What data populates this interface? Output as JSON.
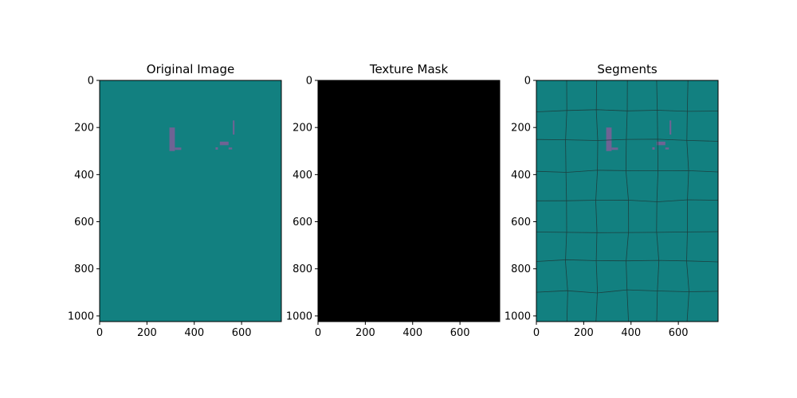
{
  "background_color": "#ffffff",
  "chart_data": [
    {
      "type": "image",
      "title": "Original Image",
      "xlim": [
        0,
        768
      ],
      "ylim": [
        1024,
        0
      ],
      "x_ticks": [
        0,
        200,
        400,
        600
      ],
      "y_ticks": [
        0,
        200,
        400,
        600,
        800,
        1000
      ],
      "fill_color": "#128080",
      "foreground_color": "#7a5f96",
      "marks": [
        {
          "x": [
            295,
            318
          ],
          "y": [
            200,
            300
          ]
        },
        {
          "x": [
            318,
            345
          ],
          "y": [
            285,
            295
          ]
        },
        {
          "x": [
            490,
            500
          ],
          "y": [
            284,
            294
          ]
        },
        {
          "x": [
            508,
            545
          ],
          "y": [
            260,
            275
          ]
        },
        {
          "x": [
            545,
            560
          ],
          "y": [
            285,
            293
          ]
        },
        {
          "x": [
            563,
            570
          ],
          "y": [
            170,
            230
          ]
        }
      ],
      "grid": false
    },
    {
      "type": "image",
      "title": "Texture Mask",
      "xlim": [
        0,
        768
      ],
      "ylim": [
        1024,
        0
      ],
      "x_ticks": [
        0,
        200,
        400,
        600
      ],
      "y_ticks": [
        0,
        200,
        400,
        600,
        800,
        1000
      ],
      "fill_color": "#000000",
      "grid": false
    },
    {
      "type": "image",
      "title": "Segments",
      "xlim": [
        0,
        768
      ],
      "ylim": [
        1024,
        0
      ],
      "x_ticks": [
        0,
        200,
        400,
        600
      ],
      "y_ticks": [
        0,
        200,
        400,
        600,
        800,
        1000
      ],
      "fill_color": "#128080",
      "foreground_color": "#7a5f96",
      "boundary_color": "#1c4040",
      "segment_grid": {
        "columns": 6,
        "rows": 8
      },
      "grid": false
    }
  ]
}
